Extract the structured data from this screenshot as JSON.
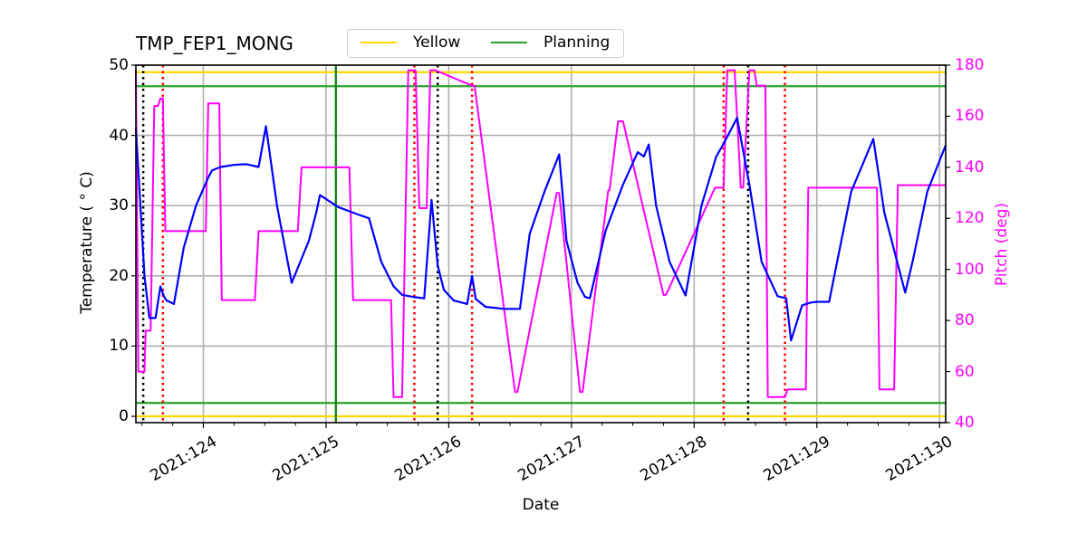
{
  "chart_data": {
    "type": "line",
    "title": "TMP_FEP1_MONG",
    "xlabel": "Date",
    "ylabel": "Temperature ($^\\circ$C)",
    "ylabel_display": "Temperature ( ° C)",
    "y2label": "Pitch (deg)",
    "xlim": [
      123.45,
      130.05
    ],
    "ylim": [
      -0.9,
      50
    ],
    "y2lim": [
      40,
      180
    ],
    "grid": true,
    "legend": {
      "position": "top-center-above-axes",
      "entries": [
        {
          "label": "Yellow",
          "color": "#ffd700"
        },
        {
          "label": "Planning",
          "color": "#2ca02c"
        }
      ]
    },
    "x_tick_labels": [
      "2021:124",
      "2021:125",
      "2021:126",
      "2021:127",
      "2021:128",
      "2021:129",
      "2021:130"
    ],
    "x_tick_values": [
      124,
      125,
      126,
      127,
      128,
      129,
      130
    ],
    "y_tick_labels": [
      "0",
      "10",
      "20",
      "30",
      "40",
      "50"
    ],
    "y2_tick_labels": [
      "40",
      "60",
      "80",
      "100",
      "120",
      "140",
      "160",
      "180"
    ],
    "horizontal_lines": [
      {
        "name": "Yellow high",
        "y": 49,
        "color": "#ffd700"
      },
      {
        "name": "Planning high",
        "y": 47,
        "color": "#2ca02c"
      },
      {
        "name": "Planning low",
        "y": 1.9,
        "color": "#2ca02c"
      },
      {
        "name": "Yellow low",
        "y": 0,
        "color": "#ffd700"
      }
    ],
    "vertical_lines": [
      {
        "x": 123.51,
        "color": "#000000",
        "style": "dotted"
      },
      {
        "x": 123.67,
        "color": "#ff0000",
        "style": "dotted"
      },
      {
        "x": 125.08,
        "color": "#008000",
        "style": "solid"
      },
      {
        "x": 125.72,
        "color": "#ff0000",
        "style": "dotted"
      },
      {
        "x": 125.91,
        "color": "#000000",
        "style": "dotted"
      },
      {
        "x": 126.19,
        "color": "#ff0000",
        "style": "dotted"
      },
      {
        "x": 128.24,
        "color": "#ff0000",
        "style": "dotted"
      },
      {
        "x": 128.44,
        "color": "#000000",
        "style": "dotted"
      },
      {
        "x": 128.74,
        "color": "#ff0000",
        "style": "dotted"
      }
    ],
    "series": [
      {
        "name": "TMP_FEP1_MONG",
        "axis": "left",
        "color": "#0000ff",
        "x": [
          123.45,
          123.52,
          123.56,
          123.58,
          123.61,
          123.65,
          123.68,
          123.7,
          123.76,
          123.84,
          123.94,
          124.04,
          124.07,
          124.14,
          124.25,
          124.35,
          124.45,
          124.51,
          124.6,
          124.72,
          124.86,
          124.92,
          124.95,
          125.1,
          125.25,
          125.35,
          125.45,
          125.55,
          125.62,
          125.71,
          125.8,
          125.86,
          125.91,
          125.96,
          126.04,
          126.15,
          126.19,
          126.22,
          126.3,
          126.45,
          126.58,
          126.66,
          126.78,
          126.9,
          126.96,
          127.05,
          127.11,
          127.15,
          127.28,
          127.42,
          127.54,
          127.59,
          127.63,
          127.69,
          127.8,
          127.93,
          128.06,
          128.18,
          128.24,
          128.35,
          128.45,
          128.55,
          128.68,
          128.75,
          128.79,
          128.88,
          128.95,
          129.0,
          129.1,
          129.28,
          129.46,
          129.55,
          129.72,
          129.78,
          129.9,
          130.05
        ],
        "y": [
          41,
          20,
          14,
          14,
          14,
          18.5,
          17,
          16.5,
          16,
          24,
          30,
          34,
          35,
          35.5,
          35.8,
          35.9,
          35.5,
          41.3,
          30,
          19,
          25,
          29,
          31.5,
          29.8,
          28.8,
          28.2,
          22,
          18.5,
          17.3,
          17,
          16.8,
          30.8,
          21.5,
          18,
          16.5,
          16,
          20,
          16.7,
          15.6,
          15.3,
          15.3,
          26,
          32,
          37.3,
          25,
          19,
          17,
          16.8,
          26.5,
          33,
          37.6,
          37,
          38.7,
          30,
          22,
          17.2,
          30,
          37,
          38.8,
          42.5,
          33,
          22,
          17.1,
          16.8,
          10.8,
          15.8,
          16.2,
          16.3,
          16.3,
          32,
          39.5,
          29,
          17.6,
          22,
          32,
          38.6
        ]
      },
      {
        "name": "Pitch",
        "axis": "right",
        "color": "#ff00ff",
        "x": [
          123.45,
          123.47,
          123.52,
          123.53,
          123.57,
          123.6,
          123.63,
          123.65,
          123.67,
          123.69,
          124.02,
          124.04,
          124.13,
          124.15,
          124.42,
          124.45,
          124.77,
          124.8,
          125.19,
          125.22,
          125.53,
          125.55,
          125.62,
          125.67,
          125.73,
          125.76,
          125.82,
          125.85,
          125.89,
          126.19,
          126.21,
          126.54,
          126.56,
          126.88,
          126.9,
          127.07,
          127.09,
          127.3,
          127.31,
          127.38,
          127.42,
          127.75,
          127.77,
          128.17,
          128.24,
          128.27,
          128.33,
          128.38,
          128.4,
          128.45,
          128.49,
          128.51,
          128.58,
          128.6,
          128.74,
          128.76,
          128.91,
          128.93,
          129.49,
          129.51,
          129.63,
          129.66,
          130.05
        ],
        "y": [
          178,
          60,
          60,
          76,
          76,
          164,
          164,
          167,
          167,
          115,
          115,
          165,
          165,
          88,
          88,
          115,
          115,
          140,
          140,
          88,
          88,
          50,
          50,
          178,
          178,
          124,
          124,
          178,
          178,
          172,
          172,
          52,
          52,
          130,
          130,
          52,
          52,
          131,
          131,
          158,
          158,
          90,
          90,
          132,
          132,
          178,
          178,
          132,
          132,
          178,
          178,
          172,
          172,
          50,
          50,
          53,
          53,
          132,
          132,
          53,
          53,
          133,
          133
        ]
      }
    ]
  }
}
